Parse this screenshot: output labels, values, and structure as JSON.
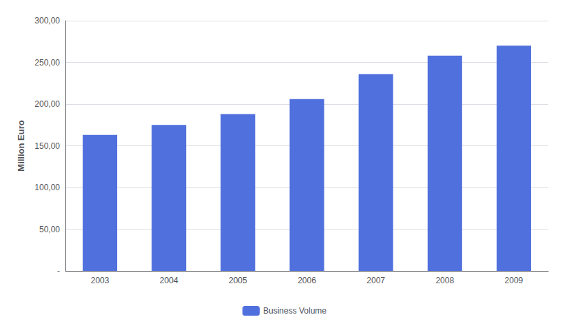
{
  "chart_data": {
    "type": "bar",
    "categories": [
      "2003",
      "2004",
      "2005",
      "2006",
      "2007",
      "2008",
      "2009"
    ],
    "series": [
      {
        "name": "Business Volume",
        "values": [
          163,
          175,
          188,
          206,
          236,
          258,
          270
        ]
      }
    ],
    "ylabel": "Million Euro",
    "ylim": [
      0,
      300
    ],
    "yticks": [
      {
        "value": 0,
        "label": "-"
      },
      {
        "value": 50,
        "label": "50,00"
      },
      {
        "value": 100,
        "label": "100,00"
      },
      {
        "value": 150,
        "label": "150,00"
      },
      {
        "value": 200,
        "label": "200,00"
      },
      {
        "value": 250,
        "label": "250,00"
      },
      {
        "value": 300,
        "label": "300,00"
      }
    ],
    "grid": true,
    "legend": "bottom"
  }
}
